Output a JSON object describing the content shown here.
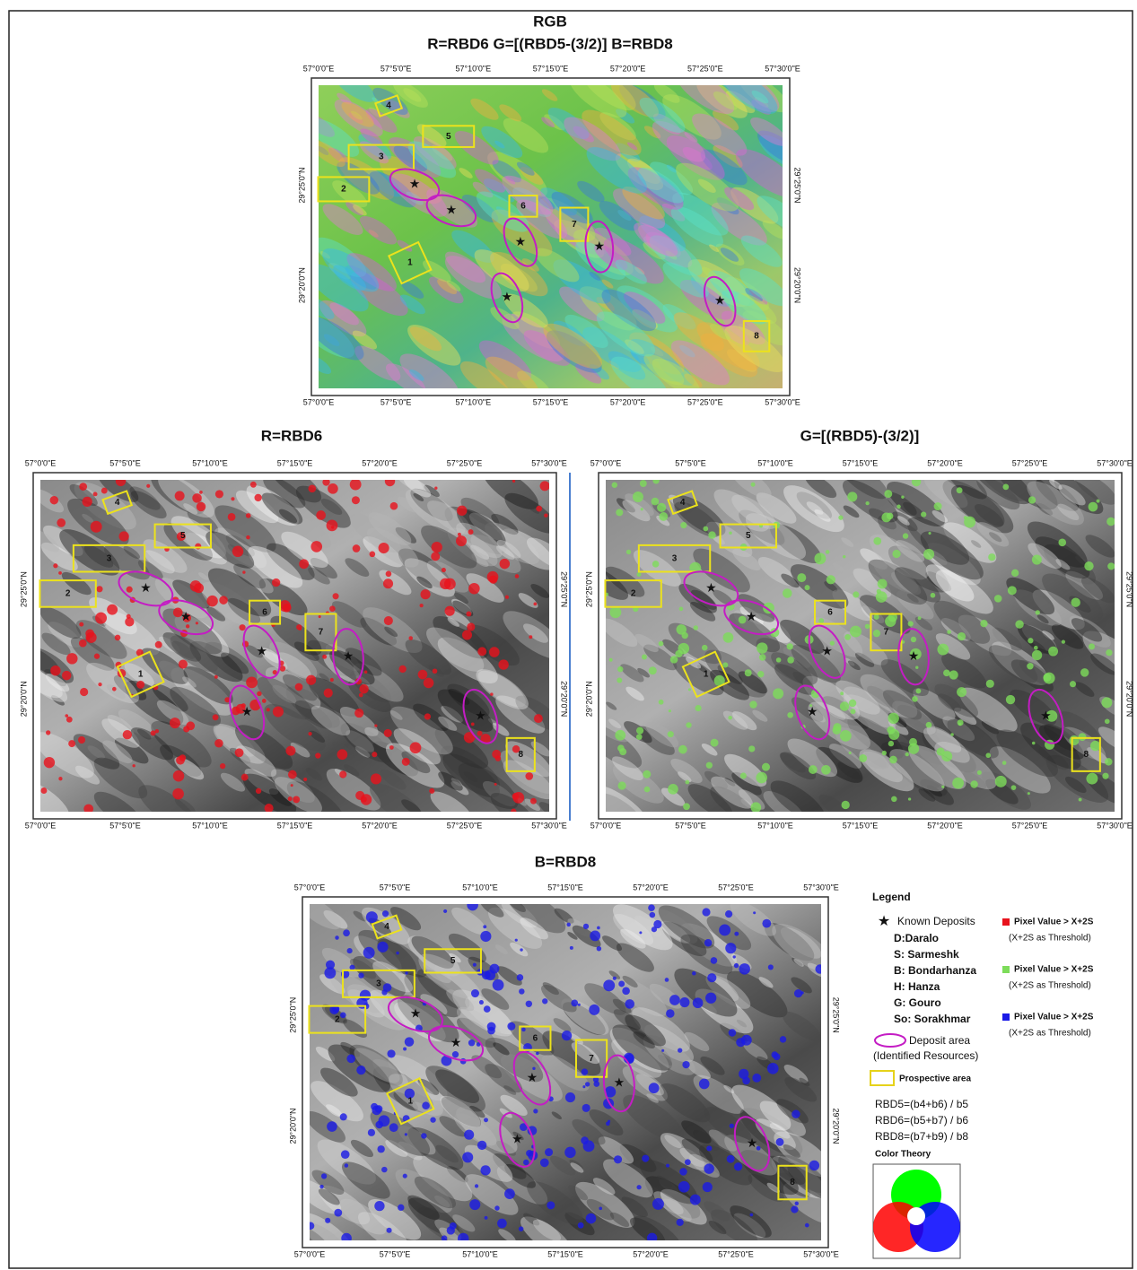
{
  "panels": [
    {
      "title": "RGB",
      "subtitle": "R=RBD6   G=[(RBD5-(3/2)]   B=RBD8",
      "style": "rgb"
    },
    {
      "title": "R=RBD6",
      "style": "gray",
      "highlight": "#e8121c"
    },
    {
      "title": "G=[(RBD5)-(3/2)]",
      "style": "gray",
      "highlight": "#7ddc5a"
    },
    {
      "title": "B=RBD8",
      "style": "gray",
      "highlight": "#1a1ae6"
    }
  ],
  "longitude_labels": [
    "57°0'0\"E",
    "57°5'0\"E",
    "57°10'0\"E",
    "57°15'0\"E",
    "57°20'0\"E",
    "57°25'0\"E",
    "57°30'0\"E"
  ],
  "latitude_labels": [
    "29°25'0\"N",
    "29°20'0\"N"
  ],
  "prospective_areas": [
    "1",
    "2",
    "3",
    "4",
    "5",
    "6",
    "7",
    "8"
  ],
  "legend": {
    "title": "Legend",
    "known_deposits": "Known Deposits",
    "deposits": [
      "D:Daralo",
      "S: Sarmeshk",
      "B: Bondarhanza",
      "H: Hanza",
      "G: Gouro",
      "So: Sorakhmar"
    ],
    "deposit_area": [
      "Deposit area",
      "(Identified Resources)"
    ],
    "prospective_area": "Prospective area",
    "formulas": [
      "RBD5=(b4+b6) / b5",
      "RBD6=(b5+b7) / b6",
      "RBD8=(b7+b9) / b8"
    ],
    "color_theory": "Color Theory",
    "thresholds": [
      {
        "label": "Pixel Value > X+2S",
        "note": "(X+2S as Threshold)",
        "color": "#e8121c"
      },
      {
        "label": "Pixel Value > X+2S",
        "note": "(X+2S as Threshold)",
        "color": "#7ddc5a"
      },
      {
        "label": "Pixel Value > X+2S",
        "note": "(X+2S as Threshold)",
        "color": "#1a1ae6"
      }
    ]
  }
}
